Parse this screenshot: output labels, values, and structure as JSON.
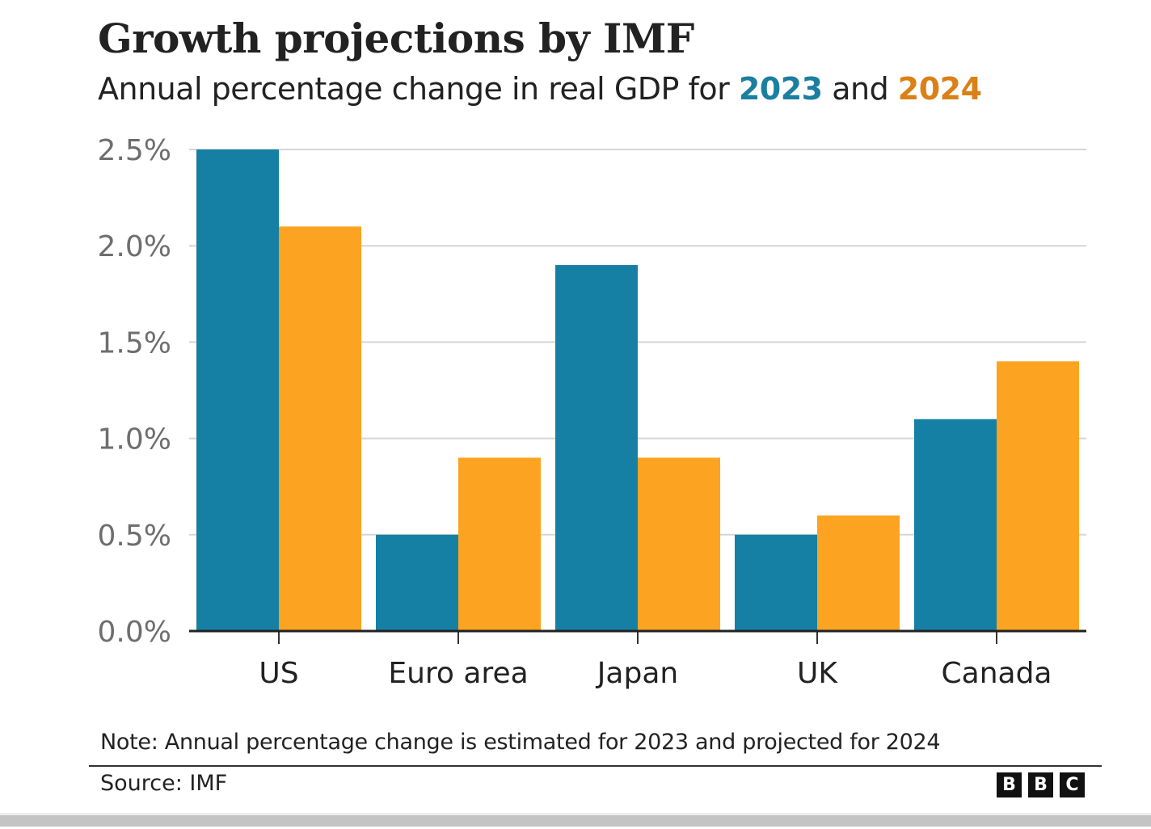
{
  "header": {
    "title": "Growth projections by IMF",
    "subtitle_prefix": "Annual percentage change in real GDP for ",
    "subtitle_year1": "2023",
    "subtitle_mid": " and ",
    "subtitle_year2": "2024"
  },
  "colors": {
    "series_2023": "#1680a4",
    "series_2024": "#fca321",
    "year1_text": "#1a7fa0",
    "year2_text": "#db8017"
  },
  "chart_data": {
    "type": "bar",
    "title": "Growth projections by IMF",
    "subtitle": "Annual percentage change in real GDP for 2023 and 2024",
    "categories": [
      "US",
      "Euro area",
      "Japan",
      "UK",
      "Canada"
    ],
    "series": [
      {
        "name": "2023",
        "values": [
          2.5,
          0.5,
          1.9,
          0.5,
          1.1
        ]
      },
      {
        "name": "2024",
        "values": [
          2.1,
          0.9,
          0.9,
          0.6,
          1.4
        ]
      }
    ],
    "yticks": [
      0.0,
      0.5,
      1.0,
      1.5,
      2.0,
      2.5
    ],
    "ytick_labels": [
      "0.0%",
      "0.5%",
      "1.0%",
      "1.5%",
      "2.0%",
      "2.5%"
    ],
    "ylim": [
      0,
      2.5
    ],
    "xlabel": "",
    "ylabel": "",
    "grid": true,
    "legend": "in subtitle"
  },
  "footer": {
    "note": "Note: Annual percentage change is estimated for 2023 and projected for 2024",
    "source": "Source: IMF",
    "logo_letters": [
      "B",
      "B",
      "C"
    ]
  }
}
